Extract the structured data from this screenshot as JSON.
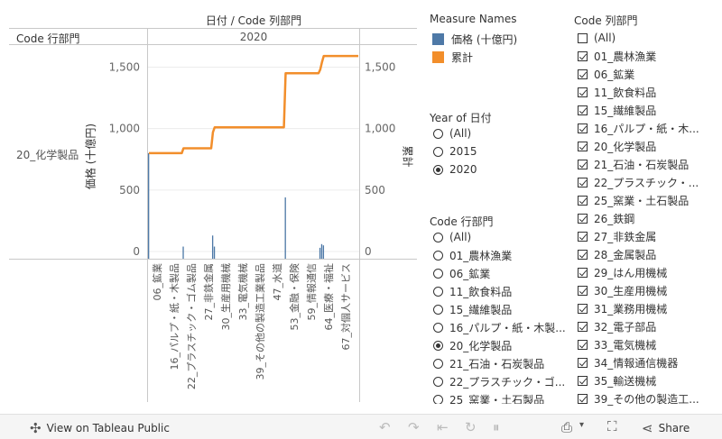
{
  "header": {
    "column_title": "日付 / Code 列部門",
    "row_header": "Code 行部門",
    "year_header": "2020",
    "row_label": "20_化学製品"
  },
  "chart_data": {
    "type": "bar+line",
    "left_axis": {
      "title": "価格 (十億円)",
      "ticks": [
        0,
        500,
        1000,
        1500
      ],
      "tick_labels": [
        "0",
        "500",
        "1,000",
        "1,500"
      ],
      "range": [
        0,
        1650
      ]
    },
    "right_axis": {
      "title": "累計",
      "ticks": [
        0,
        500,
        1000,
        1500
      ],
      "tick_labels": [
        "0",
        "500",
        "1,000",
        "1,500"
      ],
      "range": [
        0,
        1650
      ]
    },
    "x_tick_labels": [
      "06_鉱業",
      "16_パルプ・紙・木製品",
      "22_プラスチック・ゴム製品",
      "27_非鉄金属",
      "30_生産用機械",
      "33_電気機械",
      "39_その他の製造工業製品",
      "47_水道",
      "53_金融・保険",
      "59_情報通信",
      "64_医療・福祉",
      "67_対個人サービス"
    ],
    "bars": [
      800,
      0,
      0,
      0,
      0,
      0,
      0,
      0,
      0,
      0,
      0,
      0,
      0,
      0,
      0,
      0,
      0,
      0,
      0,
      0,
      40,
      0,
      0,
      0,
      0,
      0,
      0,
      0,
      0,
      0,
      0,
      0,
      0,
      0,
      0,
      0,
      0,
      130,
      40,
      0,
      0,
      0,
      0,
      0,
      0,
      0,
      0,
      0,
      0,
      0,
      0,
      0,
      0,
      0,
      0,
      0,
      0,
      0,
      0,
      0,
      0,
      0,
      0,
      0,
      0,
      0,
      0,
      0,
      0,
      0,
      0,
      0,
      0,
      0,
      0,
      0,
      0,
      0,
      0,
      440,
      0,
      0,
      0,
      0,
      0,
      0,
      0,
      0,
      0,
      0,
      0,
      0,
      0,
      0,
      0,
      0,
      0,
      0,
      0,
      30,
      60,
      50,
      0,
      0,
      0,
      0,
      0,
      0,
      0,
      0,
      0,
      0,
      0,
      0,
      0,
      0,
      0,
      0,
      0,
      0,
      0,
      0
    ],
    "cumulative": [
      800,
      800,
      800,
      800,
      800,
      800,
      800,
      800,
      800,
      800,
      800,
      800,
      800,
      800,
      800,
      800,
      800,
      800,
      800,
      800,
      840,
      840,
      840,
      840,
      840,
      840,
      840,
      840,
      840,
      840,
      840,
      840,
      840,
      840,
      840,
      840,
      840,
      970,
      1010,
      1010,
      1010,
      1010,
      1010,
      1010,
      1010,
      1010,
      1010,
      1010,
      1010,
      1010,
      1010,
      1010,
      1010,
      1010,
      1010,
      1010,
      1010,
      1010,
      1010,
      1010,
      1010,
      1010,
      1010,
      1010,
      1010,
      1010,
      1010,
      1010,
      1010,
      1010,
      1010,
      1010,
      1010,
      1010,
      1010,
      1010,
      1010,
      1010,
      1010,
      1450,
      1450,
      1450,
      1450,
      1450,
      1450,
      1450,
      1450,
      1450,
      1450,
      1450,
      1450,
      1450,
      1450,
      1450,
      1450,
      1450,
      1450,
      1450,
      1450,
      1480,
      1540,
      1590,
      1590,
      1590,
      1590,
      1590,
      1590,
      1590,
      1590,
      1590,
      1590,
      1590,
      1590,
      1590,
      1590,
      1590,
      1590,
      1590,
      1590,
      1590,
      1590,
      1590
    ],
    "bar_color": "#4e79a7",
    "line_color": "#f28e2b"
  },
  "legend": {
    "title": "Measure Names",
    "items": [
      {
        "label": "価格 (十億円)",
        "color": "#4e79a7"
      },
      {
        "label": "累計",
        "color": "#f28e2b"
      }
    ]
  },
  "year_filter": {
    "title": "Year of 日付",
    "options": [
      {
        "label": "(All)",
        "selected": false
      },
      {
        "label": "2015",
        "selected": false
      },
      {
        "label": "2020",
        "selected": true
      }
    ]
  },
  "row_filter": {
    "title": "Code 行部門",
    "options": [
      {
        "label": "(All)",
        "selected": false
      },
      {
        "label": "01_農林漁業",
        "selected": false
      },
      {
        "label": "06_鉱業",
        "selected": false
      },
      {
        "label": "11_飲食料品",
        "selected": false
      },
      {
        "label": "15_繊維製品",
        "selected": false
      },
      {
        "label": "16_パルプ・紙・木製...",
        "selected": false
      },
      {
        "label": "20_化学製品",
        "selected": true
      },
      {
        "label": "21_石油・石炭製品",
        "selected": false
      },
      {
        "label": "22_プラスチック・ゴ...",
        "selected": false
      },
      {
        "label": "25_窯業・土石製品",
        "selected": false
      }
    ]
  },
  "column_filter": {
    "title": "Code 列部門",
    "options": [
      {
        "label": "(All)",
        "checked": false
      },
      {
        "label": "01_農林漁業",
        "checked": true
      },
      {
        "label": "06_鉱業",
        "checked": true
      },
      {
        "label": "11_飲食料品",
        "checked": true
      },
      {
        "label": "15_繊維製品",
        "checked": true
      },
      {
        "label": "16_パルプ・紙・木...",
        "checked": true
      },
      {
        "label": "20_化学製品",
        "checked": true
      },
      {
        "label": "21_石油・石炭製品",
        "checked": true
      },
      {
        "label": "22_プラスチック・...",
        "checked": true
      },
      {
        "label": "25_窯業・土石製品",
        "checked": true
      },
      {
        "label": "26_鉄鋼",
        "checked": true
      },
      {
        "label": "27_非鉄金属",
        "checked": true
      },
      {
        "label": "28_金属製品",
        "checked": true
      },
      {
        "label": "29_はん用機械",
        "checked": true
      },
      {
        "label": "30_生産用機械",
        "checked": true
      },
      {
        "label": "31_業務用機械",
        "checked": true
      },
      {
        "label": "32_電子部品",
        "checked": true
      },
      {
        "label": "33_電気機械",
        "checked": true
      },
      {
        "label": "34_情報通信機器",
        "checked": true
      },
      {
        "label": "35_輸送機械",
        "checked": true
      },
      {
        "label": "39_その他の製造工...",
        "checked": true
      }
    ]
  },
  "toolbar": {
    "view_label": "View on Tableau Public",
    "share_label": "Share"
  }
}
